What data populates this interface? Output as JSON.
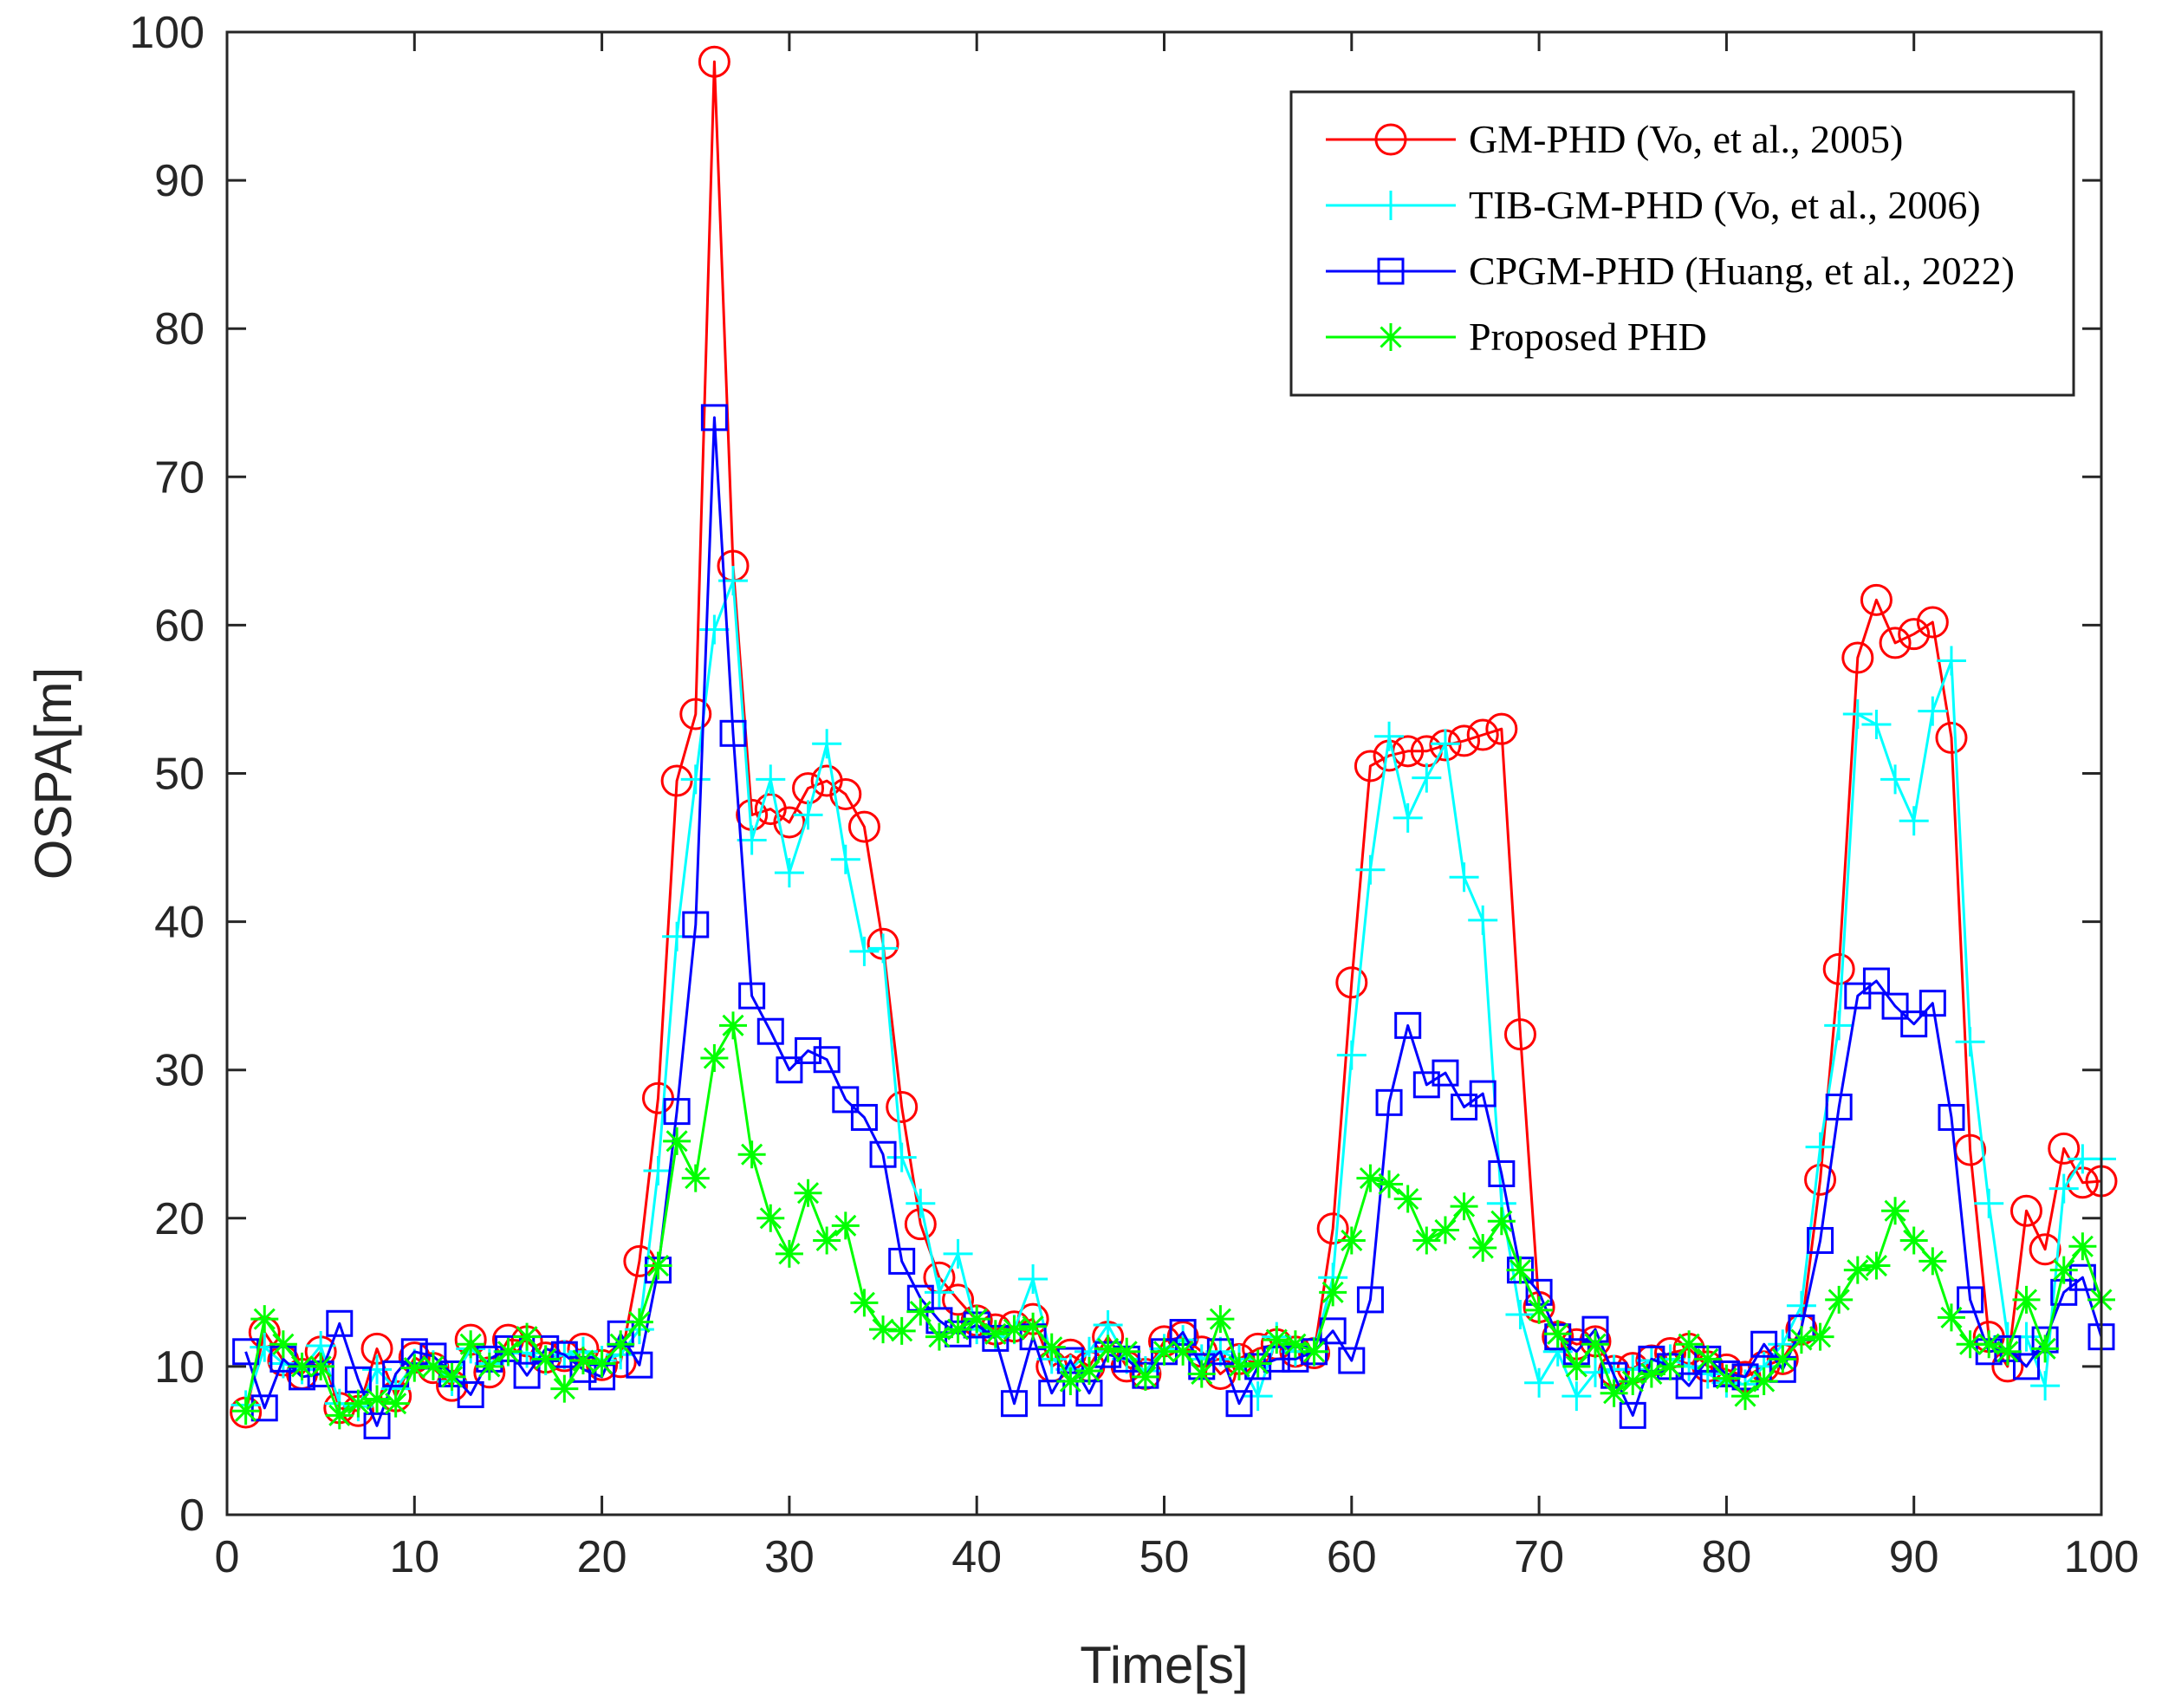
{
  "chart_data": {
    "type": "line",
    "title": "",
    "xlabel": "Time[s]",
    "ylabel": "OSPA[m]",
    "xlim": [
      0,
      100
    ],
    "ylim": [
      0,
      100
    ],
    "x_ticks": [
      0,
      10,
      20,
      30,
      40,
      50,
      60,
      70,
      80,
      90,
      100
    ],
    "y_ticks": [
      0,
      10,
      20,
      30,
      40,
      50,
      60,
      70,
      80,
      90,
      100
    ],
    "grid": false,
    "legend_position": "top-right",
    "x": [
      1,
      2,
      3,
      4,
      5,
      6,
      7,
      8,
      9,
      10,
      11,
      12,
      13,
      14,
      15,
      16,
      17,
      18,
      19,
      20,
      21,
      22,
      23,
      24,
      25,
      26,
      27,
      28,
      29,
      30,
      31,
      32,
      33,
      34,
      35,
      36,
      37,
      38,
      39,
      40,
      41,
      42,
      43,
      44,
      45,
      46,
      47,
      48,
      49,
      50,
      51,
      52,
      53,
      54,
      55,
      56,
      57,
      58,
      59,
      60,
      61,
      62,
      63,
      64,
      65,
      66,
      67,
      68,
      69,
      70,
      71,
      72,
      73,
      74,
      75,
      76,
      77,
      78,
      79,
      80,
      81,
      82,
      83,
      84,
      85,
      86,
      87,
      88,
      89,
      90,
      91,
      92,
      93,
      94,
      95,
      96,
      97,
      98,
      99,
      100
    ],
    "series": [
      {
        "name": "GM-PHD (Vo, et al., 2005)",
        "color": "#ff0000",
        "marker": "circle",
        "values": [
          6.9,
          12.3,
          10.4,
          9.5,
          11.0,
          7.2,
          7.0,
          11.2,
          8.0,
          10.6,
          9.9,
          8.7,
          11.8,
          9.6,
          11.8,
          11.7,
          10.6,
          10.7,
          11.2,
          10.1,
          10.3,
          17.1,
          28.1,
          49.5,
          54.0,
          98.0,
          64.0,
          47.2,
          47.6,
          46.7,
          49.0,
          49.5,
          48.6,
          46.4,
          38.5,
          27.5,
          19.6,
          16.0,
          14.5,
          13.1,
          12.5,
          12.7,
          13.2,
          10.0,
          10.8,
          10.0,
          12.0,
          10.0,
          9.5,
          11.7,
          12.0,
          11.0,
          9.5,
          10.5,
          11.2,
          11.5,
          11.0,
          10.9,
          19.3,
          35.9,
          50.5,
          51.2,
          51.5,
          51.5,
          51.9,
          52.2,
          52.6,
          53.0,
          32.4,
          14.0,
          12.0,
          11.5,
          11.7,
          9.7,
          9.9,
          10.4,
          10.9,
          11.2,
          10.0,
          9.8,
          9.3,
          10.0,
          10.5,
          12.5,
          22.6,
          36.8,
          57.8,
          61.7,
          58.8,
          59.4,
          60.2,
          52.4,
          24.6,
          12.0,
          10.0,
          20.5,
          17.9,
          24.7,
          22.4,
          22.5
        ]
      },
      {
        "name": "TIB-GM-PHD (Vo, et al., 2006)",
        "color": "#00ffff",
        "marker": "plus",
        "values": [
          7.4,
          11.3,
          10.2,
          9.8,
          11.4,
          7.5,
          7.3,
          9.8,
          8.5,
          10.2,
          10.1,
          9.0,
          11.2,
          10.2,
          11.0,
          10.9,
          10.4,
          10.8,
          11.0,
          10.4,
          10.8,
          12.5,
          23.2,
          39.0,
          49.6,
          59.7,
          63.0,
          45.5,
          49.6,
          43.3,
          47.2,
          52.0,
          44.2,
          38.0,
          38.2,
          24.1,
          21.0,
          15.0,
          17.6,
          12.5,
          12.0,
          12.5,
          15.9,
          10.5,
          9.8,
          11.0,
          12.8,
          10.5,
          9.7,
          11.2,
          11.8,
          10.5,
          11.0,
          10.5,
          8.0,
          12.0,
          11.0,
          11.0,
          16.0,
          31.0,
          43.5,
          52.5,
          47.0,
          49.7,
          52.0,
          43.0,
          40.1,
          21.0,
          13.5,
          8.9,
          11.0,
          8.0,
          9.6,
          9.8,
          9.8,
          10.4,
          10.5,
          10.0,
          9.5,
          8.9,
          8.8,
          10.0,
          11.5,
          14.1,
          24.8,
          33.0,
          54.0,
          53.3,
          49.6,
          46.8,
          54.2,
          57.6,
          31.9,
          21.0,
          12.0,
          12.0,
          8.7,
          22.0,
          24.0,
          24.0
        ]
      },
      {
        "name": "CPGM-PHD (Huang, et al., 2022)",
        "color": "#0000ff",
        "marker": "square",
        "values": [
          11.0,
          7.2,
          10.5,
          9.3,
          9.5,
          12.9,
          9.1,
          6.0,
          9.5,
          11.0,
          10.7,
          9.5,
          8.1,
          10.5,
          11.2,
          9.4,
          11.2,
          10.8,
          9.8,
          9.3,
          12.2,
          10.1,
          16.5,
          27.2,
          39.8,
          74.0,
          52.7,
          35.0,
          32.6,
          30.0,
          31.3,
          30.7,
          28.0,
          26.8,
          24.3,
          17.1,
          14.6,
          13.1,
          12.2,
          12.8,
          11.9,
          7.5,
          12.0,
          8.2,
          10.4,
          8.2,
          10.8,
          10.5,
          9.4,
          11.0,
          12.3,
          10.0,
          11.0,
          7.5,
          10.0,
          10.5,
          10.5,
          11.0,
          12.4,
          10.4,
          14.5,
          27.8,
          33.0,
          29.0,
          29.8,
          27.5,
          28.4,
          23.0,
          16.5,
          15.0,
          12.0,
          11.0,
          12.5,
          9.4,
          6.7,
          10.5,
          10.0,
          8.7,
          10.5,
          9.5,
          9.3,
          11.5,
          9.8,
          12.6,
          18.5,
          27.5,
          35.0,
          36.0,
          34.3,
          33.1,
          34.5,
          26.8,
          14.5,
          11.0,
          11.2,
          10.0,
          11.8,
          15.0,
          16.0,
          12.0
        ]
      },
      {
        "name": "Proposed PHD",
        "color": "#00ff00",
        "marker": "star",
        "values": [
          7.0,
          13.2,
          11.5,
          10.0,
          10.0,
          6.7,
          7.5,
          7.8,
          7.5,
          9.9,
          10.0,
          9.3,
          11.5,
          10.0,
          11.0,
          12.0,
          10.5,
          8.5,
          10.4,
          10.2,
          11.5,
          13.0,
          16.8,
          25.2,
          22.7,
          30.8,
          33.0,
          24.3,
          20.0,
          17.6,
          21.7,
          18.5,
          19.5,
          14.3,
          12.5,
          12.4,
          13.7,
          12.0,
          12.5,
          13.2,
          12.2,
          12.5,
          12.7,
          11.3,
          9.0,
          9.7,
          11.2,
          11.0,
          9.3,
          11.0,
          11.0,
          9.5,
          13.2,
          10.0,
          10.2,
          11.8,
          11.5,
          11.0,
          15.0,
          18.5,
          22.7,
          22.3,
          21.3,
          18.5,
          19.2,
          20.8,
          18.0,
          19.8,
          16.5,
          13.8,
          12.2,
          10.0,
          11.5,
          8.2,
          9.0,
          9.5,
          10.0,
          11.5,
          10.5,
          9.2,
          8.0,
          9.0,
          10.5,
          11.8,
          12.0,
          14.5,
          16.5,
          16.8,
          20.5,
          18.5,
          17.1,
          13.3,
          11.5,
          11.5,
          11.0,
          14.5,
          11.2,
          16.5,
          18.1,
          14.5
        ]
      }
    ]
  }
}
